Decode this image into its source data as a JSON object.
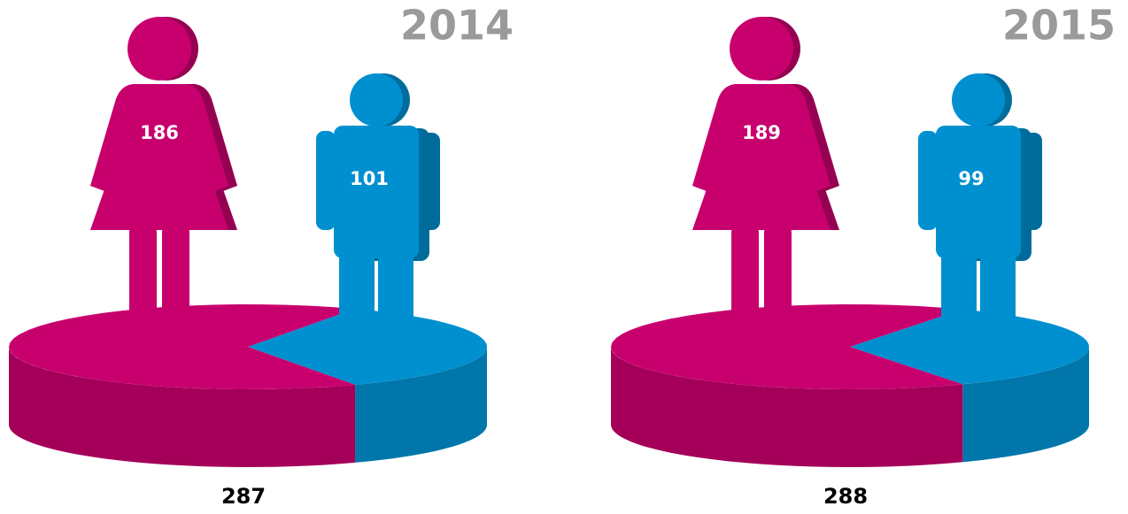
{
  "chart_data": [
    {
      "type": "pie",
      "title": "2014",
      "values": [
        186,
        101
      ],
      "colors": [
        "#c8006e",
        "#0090d0"
      ],
      "total": 287
    },
    {
      "type": "pie",
      "title": "2015",
      "values": [
        189,
        99
      ],
      "colors": [
        "#c8006e",
        "#0090d0"
      ],
      "total": 288
    }
  ]
}
